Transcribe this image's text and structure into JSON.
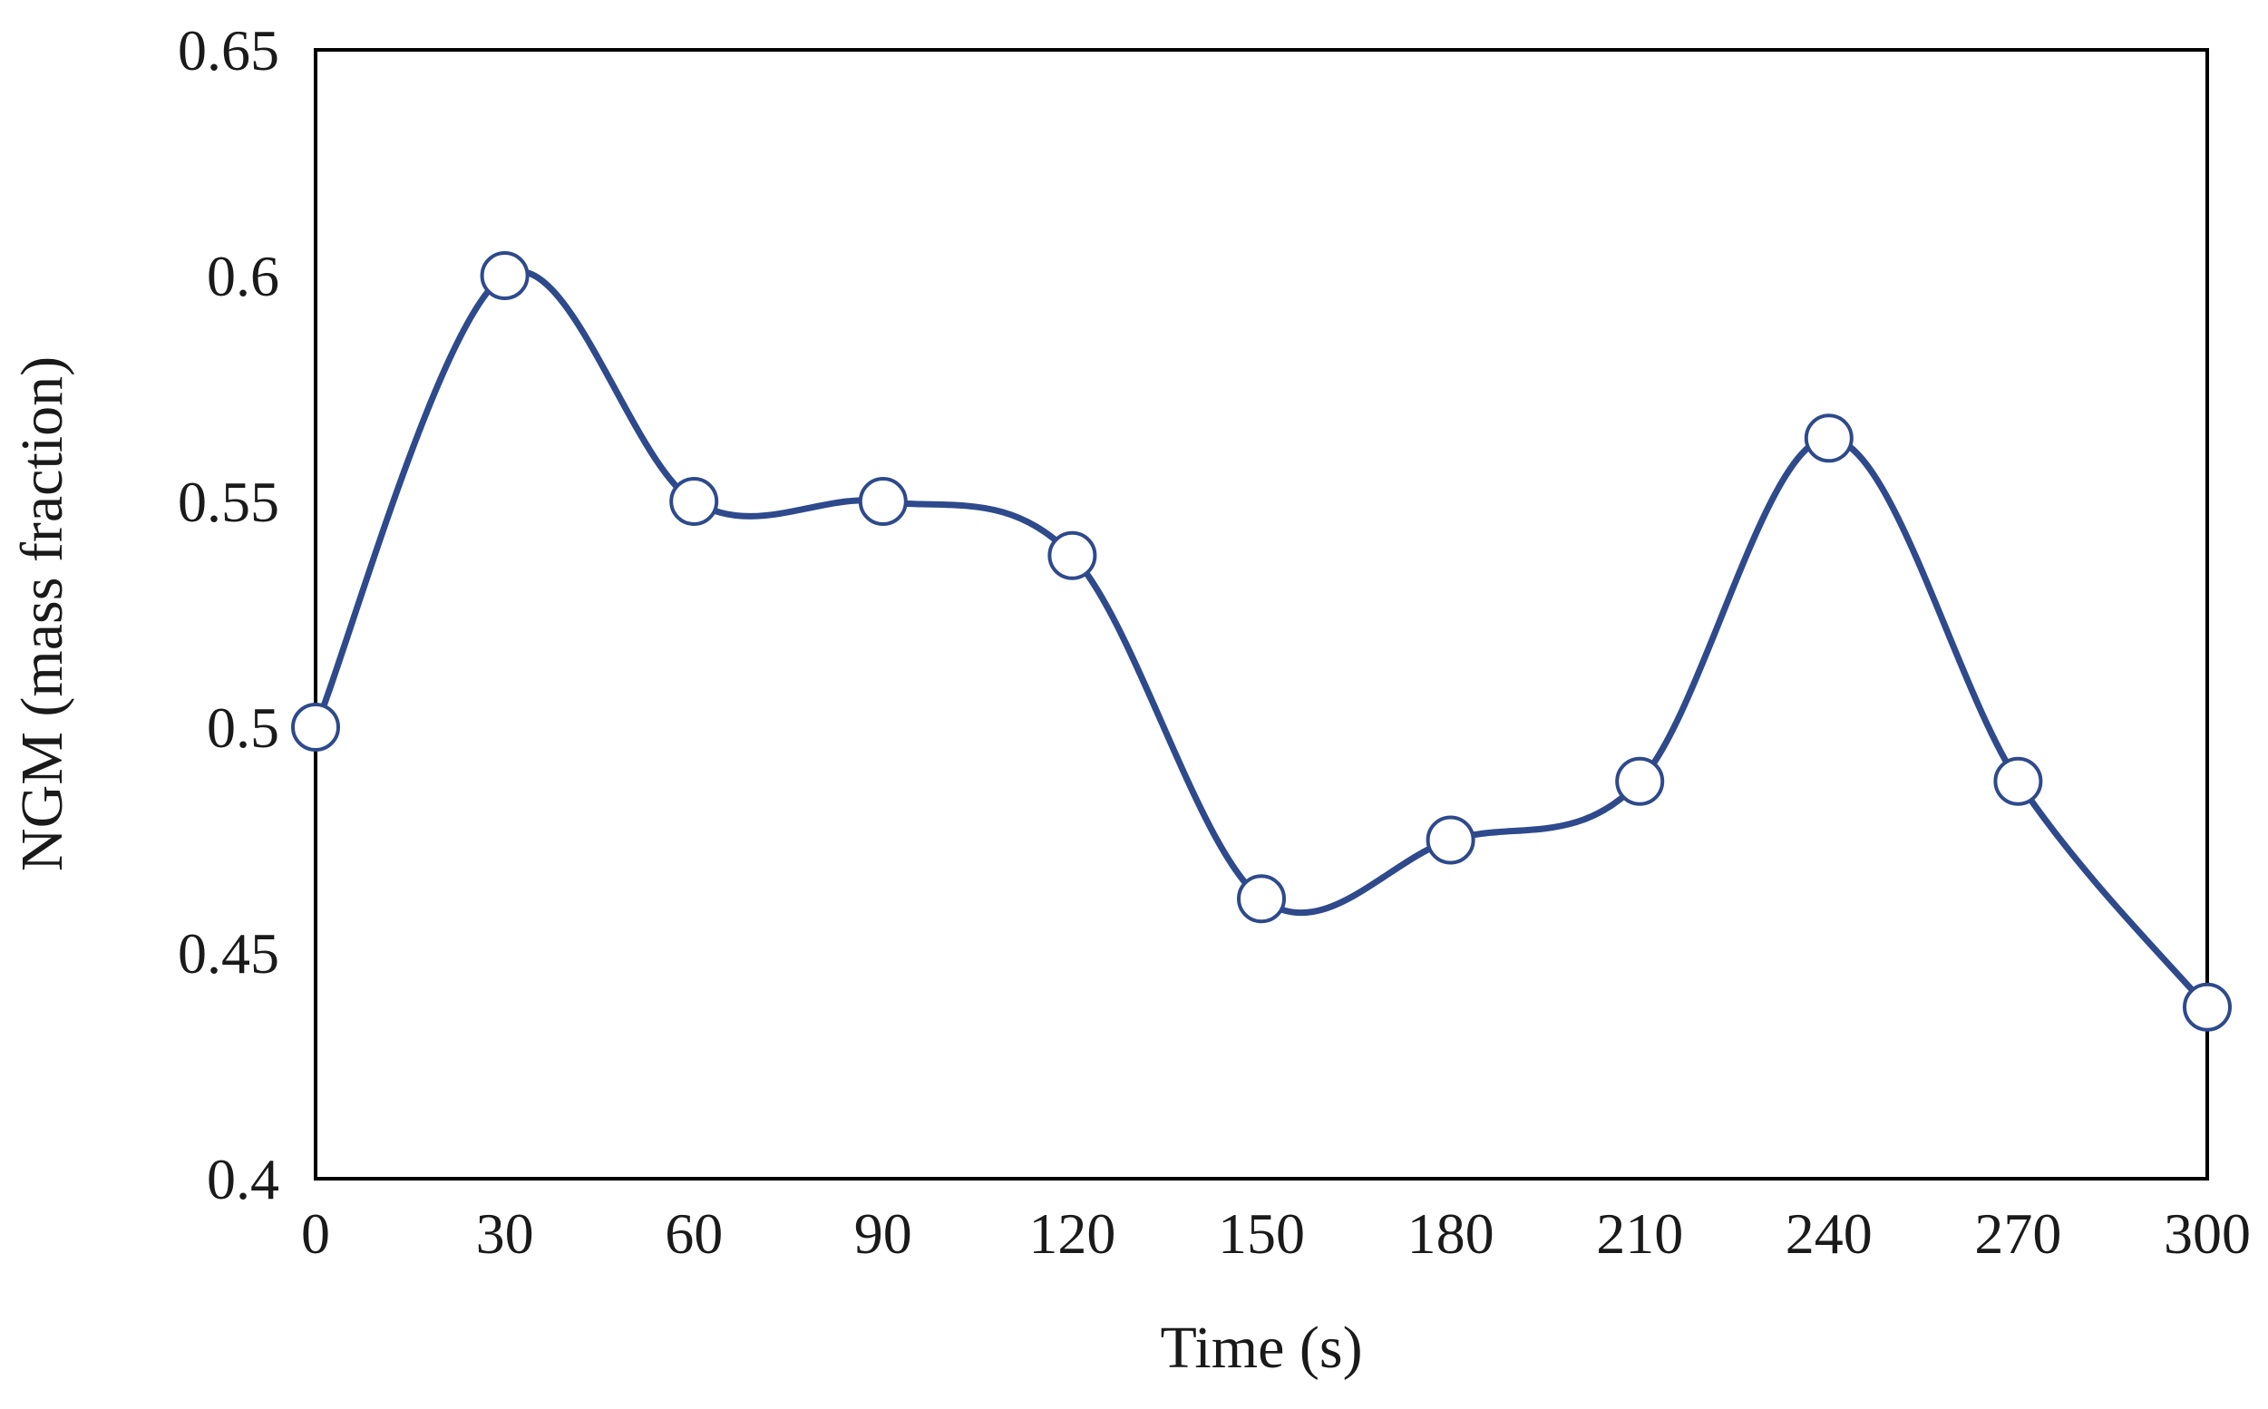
{
  "chart_data": {
    "type": "line",
    "title": "",
    "xlabel": "Time (s)",
    "ylabel": "NGM (mass fraction)",
    "x": [
      0,
      30,
      60,
      90,
      120,
      150,
      180,
      210,
      240,
      270,
      300
    ],
    "series": [
      {
        "values": [
          0.5,
          0.6,
          0.55,
          0.55,
          0.538,
          0.462,
          0.475,
          0.488,
          0.564,
          0.488,
          0.438
        ]
      }
    ],
    "xlim": [
      0,
      300
    ],
    "ylim": [
      0.4,
      0.65
    ],
    "xticks": [
      "0",
      "30",
      "60",
      "90",
      "120",
      "150",
      "180",
      "210",
      "240",
      "270",
      "300"
    ],
    "yticks": [
      "0.4",
      "0.45",
      "0.5",
      "0.55",
      "0.6",
      "0.65"
    ],
    "grid": false,
    "smooth": true,
    "marker": "open-circle",
    "colors": {
      "line": "#2e4a8c",
      "marker_fill": "#ffffff",
      "marker_stroke": "#2e4a8c",
      "frame": "#000000"
    }
  }
}
